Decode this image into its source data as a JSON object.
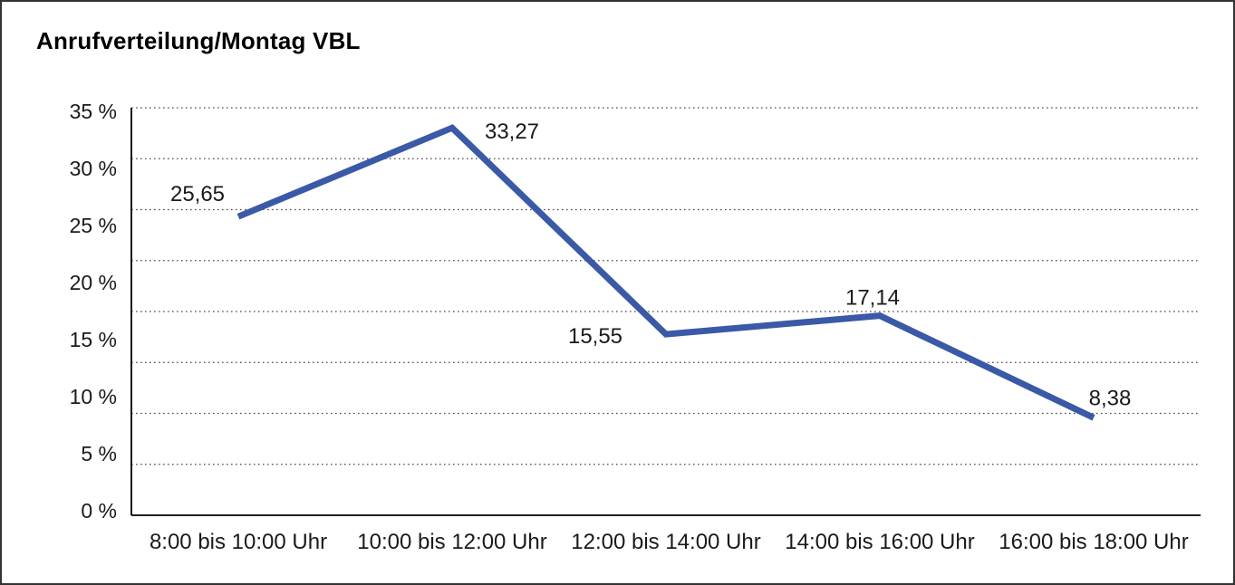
{
  "chart_data": {
    "type": "line",
    "title": "Anrufverteilung/Montag VBL",
    "categories": [
      "8:00 bis 10:00 Uhr",
      "10:00 bis 12:00 Uhr",
      "12:00 bis 14:00 Uhr",
      "14:00 bis 16:00 Uhr",
      "16:00 bis 18:00 Uhr"
    ],
    "values": [
      25.65,
      33.27,
      15.55,
      17.14,
      8.38
    ],
    "point_labels": [
      "25,65",
      "33,27",
      "15,55",
      "17,14",
      "8,38"
    ],
    "ytick_labels": [
      "35 %",
      "30 %",
      "25 %",
      "20 %",
      "15 %",
      "10 %",
      "5 %",
      "0 %"
    ],
    "ylim": [
      0,
      35
    ],
    "xlabel": "",
    "ylabel": "",
    "grid": "horizontal-dotted",
    "legend": "none",
    "colors": {
      "line": "#3A59A6",
      "axis": "#000000",
      "gridline": "#4a4a4a",
      "text": "#1a1a1a",
      "frame_border": "#333333",
      "background": "#ffffff"
    }
  }
}
